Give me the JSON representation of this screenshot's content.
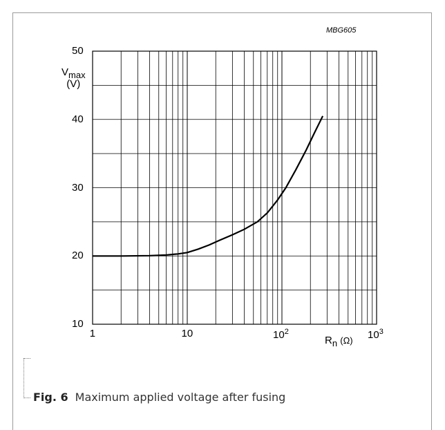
{
  "figure": {
    "code": "MBG605",
    "caption_label": "Fig. 6",
    "caption_text": "Maximum applied voltage after fusing"
  },
  "chart_data": {
    "type": "line",
    "xscale": "log",
    "xlim": [
      1,
      1000
    ],
    "ylim": [
      10,
      50
    ],
    "grid": true,
    "ylabel_main": "V",
    "ylabel_sub": "max",
    "ylabel_unit": "(V)",
    "xlabel_main": "R",
    "xlabel_sub": "n",
    "xlabel_unit": "(Ω)",
    "y_ticks": [
      "10",
      "20",
      "30",
      "40",
      "50"
    ],
    "x_ticks": [
      {
        "base": "1",
        "exp": ""
      },
      {
        "base": "10",
        "exp": ""
      },
      {
        "base": "10",
        "exp": "2"
      },
      {
        "base": "10",
        "exp": "3"
      }
    ],
    "series": [
      {
        "x": [
          1,
          2,
          4,
          6,
          8,
          10,
          13,
          17,
          22,
          30,
          40,
          55,
          70,
          90,
          110,
          140,
          180,
          220,
          270
        ],
        "y": [
          20,
          20,
          20.05,
          20.15,
          20.3,
          20.5,
          21,
          21.6,
          22.3,
          23.1,
          23.9,
          25,
          26.3,
          28.2,
          30,
          32.6,
          35.5,
          38,
          40.5
        ]
      }
    ]
  }
}
